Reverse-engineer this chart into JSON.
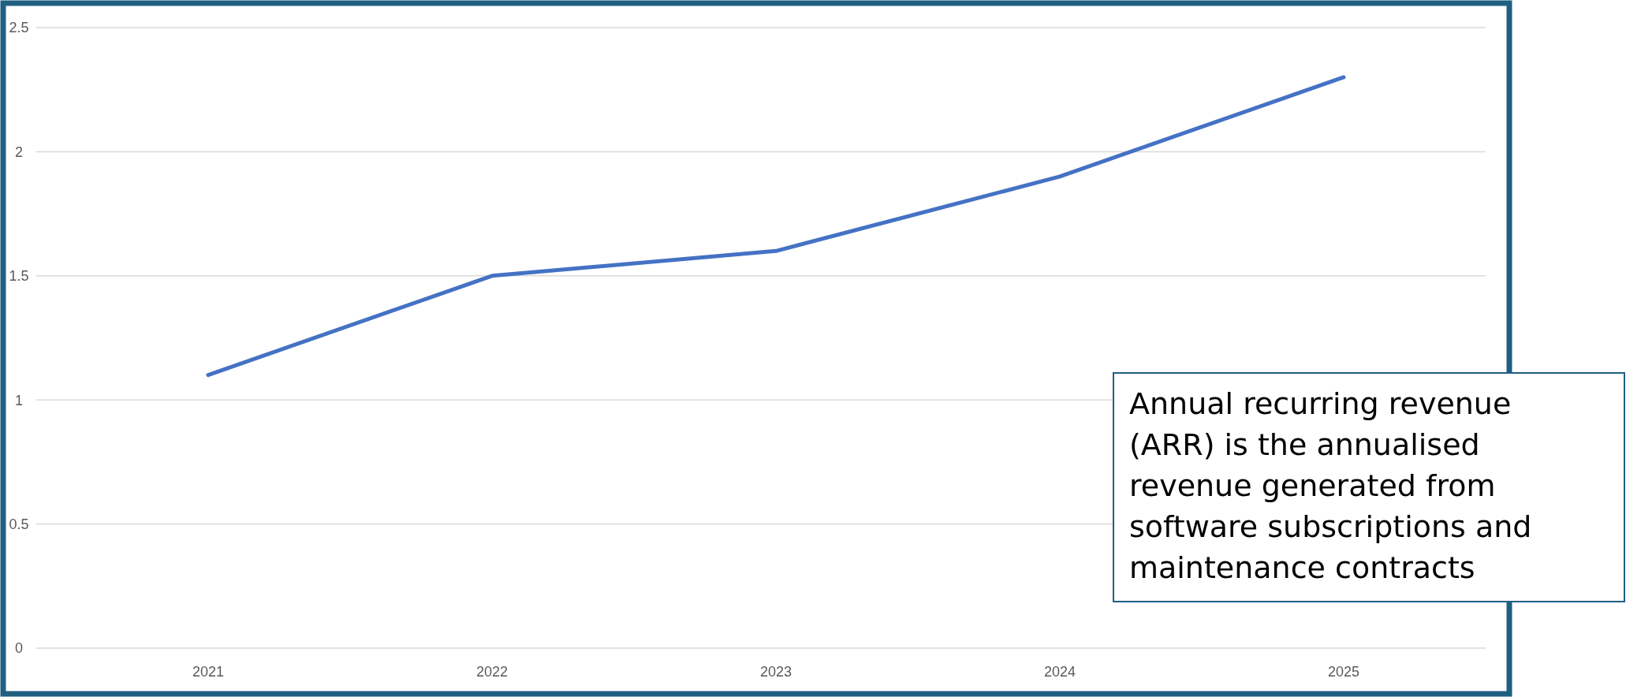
{
  "chart_data": {
    "type": "line",
    "categories": [
      "2021",
      "2022",
      "2023",
      "2024",
      "2025"
    ],
    "series": [
      {
        "color": "#4472c4",
        "values": [
          1.1,
          1.5,
          1.6,
          1.9,
          2.3
        ]
      }
    ],
    "ylim": [
      0,
      2.5
    ],
    "yticks": [
      0,
      0.5,
      1,
      1.5,
      2,
      2.5
    ],
    "grid": "y",
    "marker": "none",
    "line_style": "solid",
    "annotations": [
      "Annual recurring revenue (ARR) is the annualised revenue generated from software subscriptions and maintenance contracts"
    ]
  }
}
